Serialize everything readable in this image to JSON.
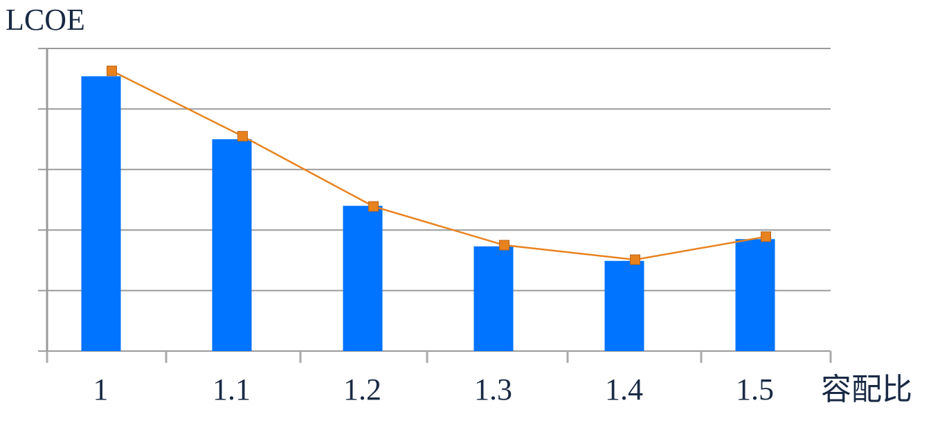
{
  "chart_data": {
    "type": "bar",
    "y_label": "LCOE",
    "x_label": "容配比",
    "categories": [
      "1",
      "1.1",
      "1.2",
      "1.3",
      "1.4",
      "1.5"
    ],
    "series": [
      {
        "type": "bar",
        "color": "#0073ff",
        "values": [
          4.54,
          3.5,
          2.4,
          1.73,
          1.49,
          1.85
        ]
      },
      {
        "type": "line",
        "color": "#e8821e",
        "values": [
          4.63,
          3.55,
          2.39,
          1.75,
          1.51,
          1.89
        ]
      }
    ],
    "ylim": [
      0,
      5
    ],
    "yticks": [
      0,
      1,
      2,
      3,
      4,
      5
    ],
    "grid": true
  }
}
